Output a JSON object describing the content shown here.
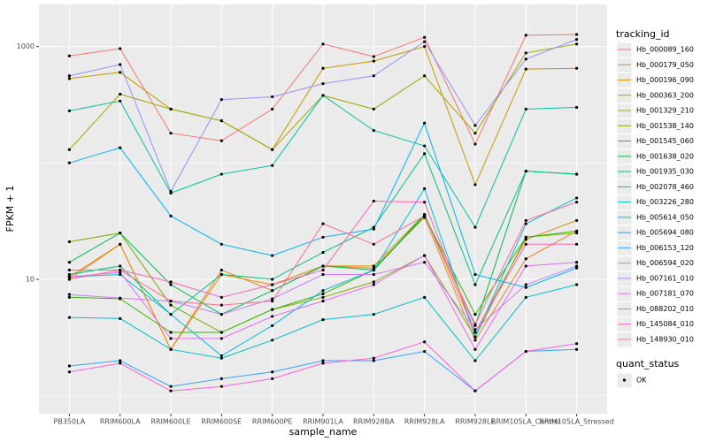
{
  "chart_data": {
    "type": "line",
    "x_label": "sample_name",
    "y_label": "FPKM + 1",
    "categories": [
      "PB350LA",
      "RRIM600LA",
      "RRIM600LE",
      "RRIM600SE",
      "RRIM600PE",
      "RRIM901LA",
      "RRIM928BA",
      "RRIM928LA",
      "RRIM928LE",
      "RRIM105LA_Control",
      "RRIM105LA_Stressed"
    ],
    "log_y": true,
    "ylim": [
      0.7,
      2300
    ],
    "yticks": [
      10,
      1000
    ],
    "yminor": [
      1,
      100
    ],
    "grid": true,
    "legend_title": "tracking_id",
    "legend_position": "right",
    "point_legend_title": "quant_status",
    "point_legend_labels": [
      "OK"
    ],
    "point_color": "#000000",
    "series": [
      {
        "name": "Hb_000089_160",
        "color": "#F8766D",
        "values": [
          830,
          960,
          180,
          155,
          290,
          1050,
          820,
          1200,
          145,
          1250,
          1270
        ]
      },
      {
        "name": "Hb_000179_050",
        "color": "#EA8331",
        "values": [
          10.5,
          20,
          2.5,
          12,
          8,
          13,
          12.5,
          34,
          3,
          15,
          26
        ]
      },
      {
        "name": "Hb_000196_090",
        "color": "#D89000",
        "values": [
          10,
          20,
          2.5,
          11,
          9,
          13,
          13,
          36,
          3.5,
          22,
          32
        ]
      },
      {
        "name": "Hb_000363_200",
        "color": "#C09B00",
        "values": [
          530,
          600,
          290,
          230,
          130,
          650,
          750,
          1000,
          65,
          640,
          650
        ]
      },
      {
        "name": "Hb_001329_210",
        "color": "#A3A500",
        "values": [
          130,
          390,
          290,
          230,
          130,
          380,
          290,
          560,
          180,
          880,
          1050
        ]
      },
      {
        "name": "Hb_001538_140",
        "color": "#7CAE00",
        "values": [
          21,
          25,
          6,
          3.5,
          5.5,
          7,
          9.5,
          16,
          3.2,
          23,
          25
        ]
      },
      {
        "name": "Hb_001545_060",
        "color": "#39B600",
        "values": [
          7,
          6.8,
          3.5,
          3.5,
          5.5,
          7.5,
          12,
          35,
          5,
          23,
          26
        ]
      },
      {
        "name": "Hb_001638_020",
        "color": "#00BB4E",
        "values": [
          14,
          25,
          9,
          5,
          8,
          13,
          12,
          36,
          4,
          85,
          80
        ]
      },
      {
        "name": "Hb_001935_030",
        "color": "#00BF7D",
        "values": [
          11,
          13,
          5,
          11,
          10,
          17,
          28,
          120,
          9,
          85,
          80
        ]
      },
      {
        "name": "Hb_002078_460",
        "color": "#00C1A3",
        "values": [
          280,
          340,
          55,
          80,
          95,
          380,
          190,
          140,
          28,
          290,
          300
        ]
      },
      {
        "name": "Hb_003226_280",
        "color": "#00BFC4",
        "values": [
          4.7,
          4.6,
          2.5,
          2.1,
          3,
          4.5,
          5,
          7,
          2,
          7,
          9
        ]
      },
      {
        "name": "Hb_005614_050",
        "color": "#00BAE0",
        "values": [
          10.5,
          11,
          5,
          2.2,
          4,
          8,
          12,
          60,
          3.2,
          30,
          50
        ]
      },
      {
        "name": "Hb_005694_080",
        "color": "#00B0F6",
        "values": [
          100,
          135,
          35,
          20,
          16,
          23,
          27,
          220,
          11,
          8.5,
          12.5
        ]
      },
      {
        "name": "Hb_006153_120",
        "color": "#35A2FF",
        "values": [
          1.8,
          2,
          1.2,
          1.4,
          1.6,
          2,
          2,
          2.4,
          1.1,
          2.4,
          2.5
        ]
      },
      {
        "name": "Hb_006594_020",
        "color": "#9590FF",
        "values": [
          560,
          700,
          57,
          350,
          370,
          480,
          560,
          1100,
          210,
          780,
          1150
        ]
      },
      {
        "name": "Hb_007161_010",
        "color": "#C77CFF",
        "values": [
          7.4,
          6.9,
          6.5,
          5,
          6.8,
          11,
          11,
          14,
          3.7,
          9,
          13
        ]
      },
      {
        "name": "Hb_007181_070",
        "color": "#E76BF3",
        "values": [
          10.5,
          11.5,
          3.1,
          3.1,
          4.8,
          6.5,
          9,
          16,
          2.5,
          13,
          14
        ]
      },
      {
        "name": "Hb_088202_010",
        "color": "#FA62DB",
        "values": [
          1.6,
          1.9,
          1.1,
          1.2,
          1.4,
          1.9,
          2.1,
          2.9,
          1.1,
          2.4,
          2.8
        ]
      },
      {
        "name": "Hb_145084_010",
        "color": "#FF62BC",
        "values": [
          12,
          12,
          9.5,
          7,
          9,
          12,
          47,
          46,
          3.5,
          20,
          20
        ]
      },
      {
        "name": "Hb_148930_010",
        "color": "#FF6C91",
        "values": [
          10,
          12,
          6.5,
          6,
          6.5,
          30,
          20,
          35,
          4.1,
          32,
          46
        ]
      }
    ]
  }
}
